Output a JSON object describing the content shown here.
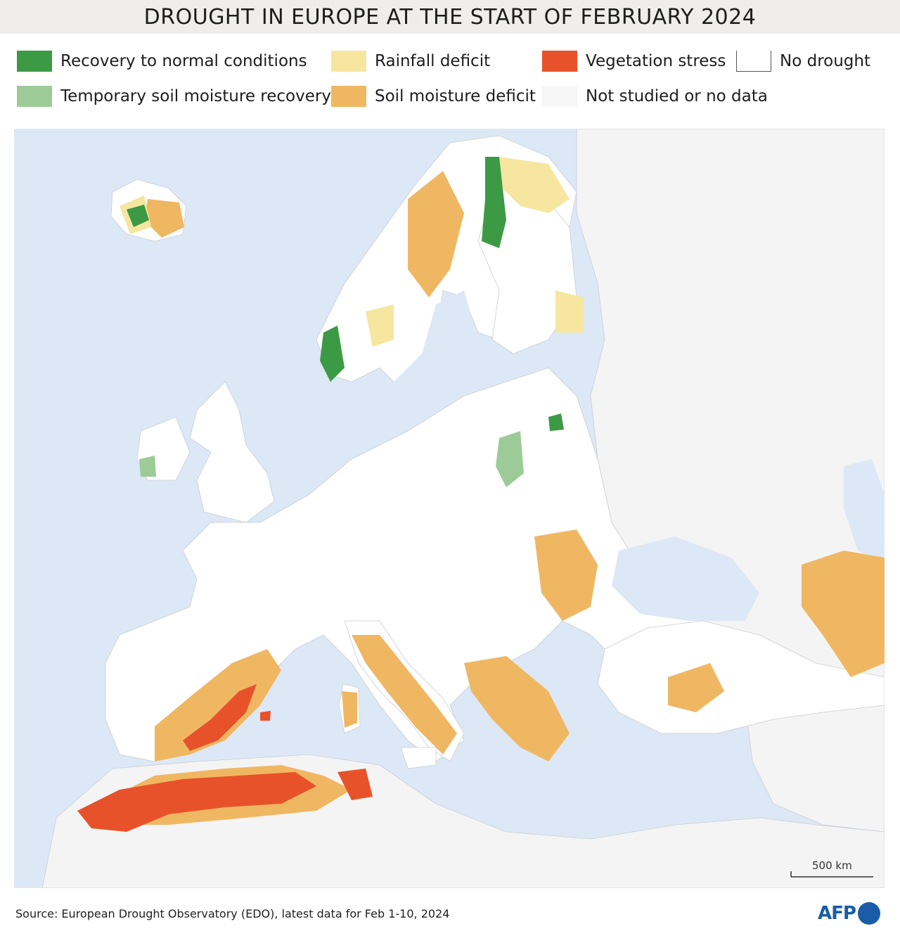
{
  "title": "DROUGHT IN EUROPE AT THE START OF FEBRUARY 2024",
  "legend": [
    {
      "label": "Recovery to normal conditions",
      "color": "#3c9a44",
      "icon": "recovery-swatch"
    },
    {
      "label": "Temporary soil moisture recovery",
      "color": "#9ccb98",
      "icon": "temporary-recovery-swatch"
    },
    {
      "label": "Rainfall deficit",
      "color": "#f6e6a0",
      "icon": "rainfall-deficit-swatch"
    },
    {
      "label": "Soil moisture deficit",
      "color": "#f0b763",
      "icon": "soil-moisture-deficit-swatch"
    },
    {
      "label": "Vegetation stress",
      "color": "#e8522a",
      "icon": "vegetation-stress-swatch"
    },
    {
      "label": "Not studied or no data",
      "color": "#f7f7f7",
      "icon": "no-data-swatch"
    },
    {
      "label": "No drought",
      "color": "#ffffff",
      "icon": "no-drought-swatch"
    }
  ],
  "map": {
    "sea_color": "#dde8f6",
    "nodata_color": "#f4f4f4",
    "land_color": "#ffffff",
    "scale_label": "500 km"
  },
  "source": "Source: European Drought Observatory (EDO), latest data for Feb 1-10, 2024",
  "logo": "AFP"
}
